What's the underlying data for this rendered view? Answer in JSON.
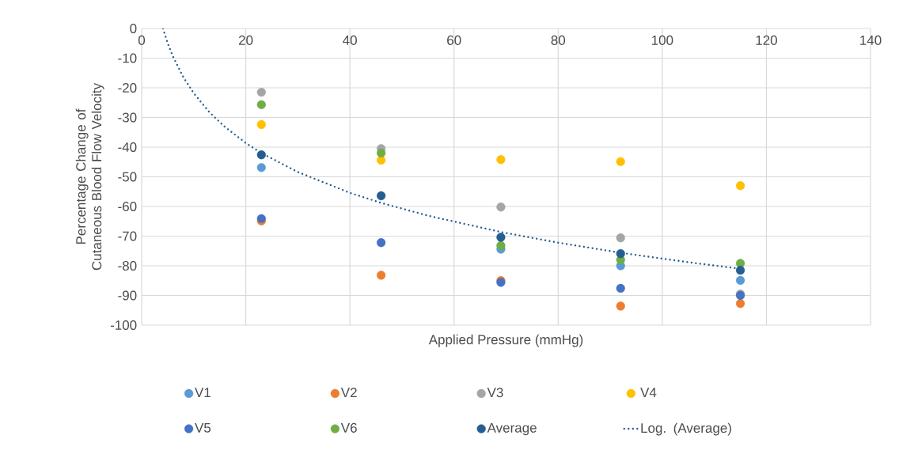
{
  "chart_data": {
    "type": "scatter",
    "xlabel": "Applied Pressure (mmHg)",
    "ylabel": "Percentage Change of Cutaneous Blood Flow Velocity",
    "x": [
      23,
      46,
      69,
      92,
      115
    ],
    "series": [
      {
        "name": "V1",
        "color": "#5b9bd5",
        "values": [
          -46.9,
          null,
          -74.4,
          -80.0,
          -84.9
        ]
      },
      {
        "name": "V2",
        "color": "#ed7d31",
        "values": [
          -64.9,
          -83.2,
          -85.0,
          -93.6,
          -92.7
        ]
      },
      {
        "name": "V3",
        "color": "#a5a5a5",
        "values": [
          -21.5,
          -40.5,
          -60.2,
          -70.6,
          -89.5
        ]
      },
      {
        "name": "V4",
        "color": "#ffc000",
        "values": [
          -32.4,
          -44.4,
          -44.2,
          -44.9,
          -53.0
        ]
      },
      {
        "name": "V5",
        "color": "#4472c4",
        "values": [
          -64.1,
          -72.2,
          -85.6,
          -87.6,
          -90.0
        ]
      },
      {
        "name": "V6",
        "color": "#70ad47",
        "values": [
          -25.7,
          -42.0,
          -73.2,
          -78.0,
          -79.2
        ]
      },
      {
        "name": "Average",
        "color": "#255e91",
        "values": [
          -42.6,
          -56.4,
          -70.4,
          -75.9,
          -81.5
        ]
      },
      {
        "name": "Log. (Average)",
        "color": "#255e91",
        "type": "line",
        "marker": "none",
        "line_style": "dotted",
        "x": [
          4.1,
          5,
          6,
          8,
          10,
          13,
          16,
          20,
          23,
          30,
          40,
          46,
          55,
          69,
          80,
          92,
          105,
          115
        ],
        "values": [
          0,
          -5,
          -9.4,
          -16.4,
          -21.8,
          -28.2,
          -33.2,
          -38.6,
          -42,
          -48.4,
          -55.4,
          -58.8,
          -63.1,
          -68.6,
          -72.2,
          -75.6,
          -78.8,
          -81
        ]
      }
    ],
    "marker": "circle",
    "grid": true,
    "legend": "bottom",
    "xlim": [
      0,
      140
    ],
    "ylim": [
      -100,
      0
    ],
    "xticks": [
      0,
      20,
      40,
      60,
      80,
      100,
      120,
      140
    ],
    "yticks": [
      -100,
      -90,
      -80,
      -70,
      -60,
      -50,
      -40,
      -30,
      -20,
      -10,
      0
    ]
  }
}
